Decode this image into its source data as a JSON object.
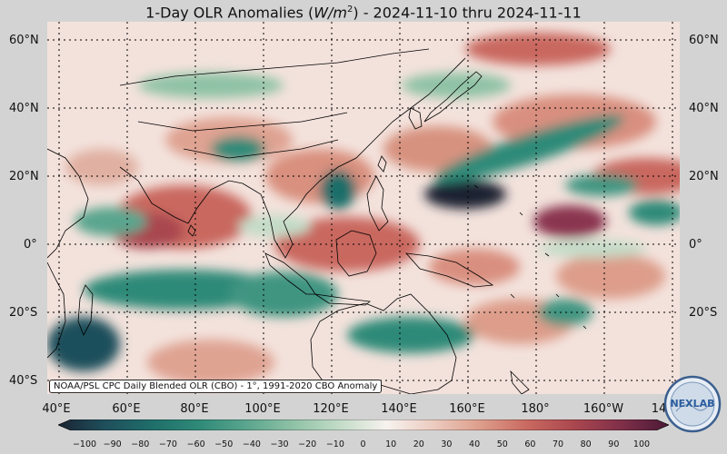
{
  "title": {
    "prefix": "1-Day OLR Anomalies (",
    "var": "W/m",
    "sup": "2",
    "suffix": ") - 2024-11-10 thru 2024-11-11"
  },
  "credit": "NOAA/PSL CPC Daily Blended OLR (CBO) - 1°, 1991-2020 CBO Anomaly",
  "lat_labels": [
    "60°N",
    "40°N",
    "20°N",
    "0°",
    "20°S",
    "40°S"
  ],
  "lon_labels": [
    "40°E",
    "60°E",
    "80°E",
    "100°E",
    "120°E",
    "140°E",
    "160°E",
    "180°",
    "160°W",
    "14"
  ],
  "colorbar": {
    "ticks": [
      "−100",
      "−90",
      "−80",
      "−70",
      "−60",
      "−50",
      "−40",
      "−30",
      "−20",
      "−10",
      "0",
      "10",
      "20",
      "30",
      "40",
      "50",
      "60",
      "70",
      "80",
      "90",
      "100"
    ],
    "colors": [
      "#1a2433",
      "#1f4f5c",
      "#1f6e6a",
      "#2f8a78",
      "#5aa58e",
      "#8fc2a6",
      "#c3dcc8",
      "#f7f2ee",
      "#eccbbf",
      "#dd9d8a",
      "#c9685f",
      "#a9474f",
      "#7f2f49",
      "#4a1a36"
    ]
  },
  "logo_text": "NEXLAB",
  "colors": {
    "land_line": "#000000",
    "grid": "#000000",
    "background": "#d3d3d3"
  }
}
